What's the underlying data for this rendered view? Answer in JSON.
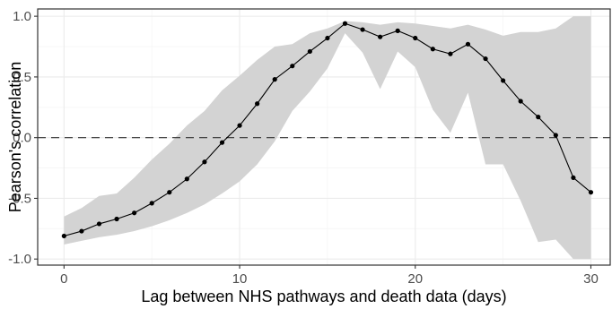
{
  "chart_data": {
    "type": "line",
    "title": "",
    "xlabel": "Lag between NHS pathways and death data (days)",
    "ylabel": "Pearson's correlation",
    "xlim": [
      -1.5,
      31.1
    ],
    "ylim": [
      -1.05,
      1.06
    ],
    "x_ticks": [
      0,
      10,
      20,
      30
    ],
    "x_tick_labels": [
      "0",
      "10",
      "20",
      "30"
    ],
    "y_ticks": [
      -1.0,
      -0.5,
      0.0,
      0.5,
      1.0
    ],
    "y_tick_labels": [
      "-1.0",
      "-0.5",
      "0.0",
      "0.5",
      "1.0"
    ],
    "grid": true,
    "reference_line": {
      "y": 0.0,
      "style": "dashed"
    },
    "series": [
      {
        "x": [
          0,
          1,
          2,
          3,
          4,
          5,
          6,
          7,
          8,
          9,
          10,
          11,
          12,
          13,
          14,
          15,
          16,
          17,
          18,
          19,
          20,
          21,
          22,
          23,
          24,
          25,
          26,
          27,
          28,
          29,
          30
        ],
        "values": [
          -0.81,
          -0.77,
          -0.71,
          -0.67,
          -0.62,
          -0.54,
          -0.45,
          -0.34,
          -0.2,
          -0.04,
          0.1,
          0.28,
          0.48,
          0.59,
          0.71,
          0.82,
          0.94,
          0.89,
          0.83,
          0.88,
          0.82,
          0.73,
          0.69,
          0.77,
          0.65,
          0.47,
          0.3,
          0.17,
          0.02,
          -0.33,
          -0.45
        ],
        "ci_lower": [
          -0.88,
          -0.85,
          -0.82,
          -0.8,
          -0.77,
          -0.73,
          -0.68,
          -0.62,
          -0.55,
          -0.46,
          -0.36,
          -0.22,
          -0.03,
          0.22,
          0.38,
          0.57,
          0.86,
          0.7,
          0.4,
          0.71,
          0.58,
          0.23,
          0.04,
          0.37,
          -0.22,
          -0.22,
          -0.52,
          -0.86,
          -0.84,
          -1.0,
          -1.0
        ],
        "ci_upper": [
          -0.65,
          -0.58,
          -0.48,
          -0.46,
          -0.33,
          -0.18,
          -0.05,
          0.1,
          0.22,
          0.39,
          0.51,
          0.64,
          0.75,
          0.77,
          0.86,
          0.9,
          0.96,
          0.95,
          0.93,
          0.95,
          0.94,
          0.92,
          0.9,
          0.93,
          0.89,
          0.84,
          0.87,
          0.87,
          0.9,
          1.0,
          1.0
        ]
      }
    ],
    "colors": {
      "line": "#000000",
      "points": "#000000",
      "ribbon": "#d3d3d3",
      "grid_major": "#ebebeb",
      "grid_minor": "#f5f5f5",
      "panel_border": "#333333",
      "reference_line": "#333333"
    }
  }
}
